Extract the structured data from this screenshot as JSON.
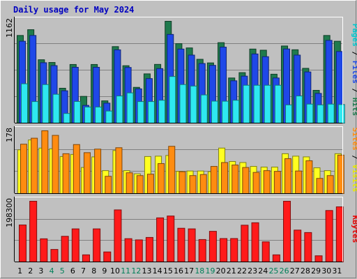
{
  "title": "Daily usage for May 2024",
  "chart_data": [
    {
      "type": "bar",
      "panel": "top",
      "ymax_label": "1162",
      "series_labels": [
        "Pages",
        "Files",
        "Hits"
      ],
      "colors": {
        "Hits": "#1f7a4d",
        "Files": "#1f48e8",
        "Pages": "#2ee8f0"
      },
      "categories": [
        "1",
        "2",
        "3",
        "4",
        "5",
        "6",
        "7",
        "8",
        "9",
        "10",
        "11",
        "12",
        "13",
        "14",
        "15",
        "16",
        "17",
        "18",
        "19",
        "20",
        "21",
        "22",
        "23",
        "24",
        "25",
        "26",
        "27",
        "28",
        "29",
        "30",
        "31"
      ],
      "series": [
        {
          "name": "Hits",
          "values": [
            1000,
            1066,
            723,
            692,
            398,
            669,
            305,
            669,
            254,
            873,
            655,
            408,
            562,
            670,
            1162,
            907,
            858,
            728,
            687,
            918,
            515,
            576,
            845,
            832,
            558,
            880,
            837,
            625,
            374,
            1000,
            934
          ]
        },
        {
          "name": "Files",
          "values": [
            934,
            1000,
            689,
            656,
            369,
            637,
            202,
            637,
            228,
            836,
            635,
            391,
            508,
            622,
            1012,
            845,
            776,
            680,
            659,
            867,
            483,
            536,
            789,
            758,
            515,
            846,
            776,
            584,
            339,
            944,
            817
          ]
        },
        {
          "name": "Pages",
          "values": [
            449,
            246,
            440,
            329,
            110,
            247,
            184,
            184,
            138,
            310,
            345,
            246,
            246,
            261,
            532,
            440,
            423,
            322,
            251,
            250,
            261,
            432,
            432,
            432,
            432,
            208,
            310,
            217,
            208,
            217,
            212
          ]
        }
      ]
    },
    {
      "type": "bar",
      "panel": "middle",
      "ymax_label": "178",
      "series_labels": [
        "Sites",
        "Visits"
      ],
      "colors": {
        "Visits": "#ffff20",
        "Sites": "#ff8c10"
      },
      "categories": [
        "1",
        "2",
        "3",
        "4",
        "5",
        "6",
        "7",
        "8",
        "9",
        "10",
        "11",
        "12",
        "13",
        "14",
        "15",
        "16",
        "17",
        "18",
        "19",
        "20",
        "21",
        "22",
        "23",
        "24",
        "25",
        "26",
        "27",
        "28",
        "29",
        "30",
        "31"
      ],
      "series": [
        {
          "name": "Visits",
          "values": [
            124,
            152,
            129,
            127,
            105,
            111,
            74,
            104,
            65,
            122,
            65,
            56,
            105,
            106,
            108,
            63,
            64,
            64,
            62,
            129,
            91,
            88,
            77,
            75,
            75,
            113,
            106,
            104,
            73,
            65,
            113
          ]
        },
        {
          "name": "Sites",
          "values": [
            140,
            157,
            178,
            165,
            113,
            139,
            116,
            126,
            49,
            130,
            59,
            51,
            55,
            85,
            134,
            62,
            51,
            54,
            77,
            88,
            81,
            74,
            60,
            65,
            63,
            99,
            64,
            93,
            43,
            51,
            109
          ]
        }
      ]
    },
    {
      "type": "bar",
      "panel": "bottom",
      "ymax_label": "198300",
      "series_labels": [
        "KBytes"
      ],
      "colors": {
        "KBytes": "#ff1a1a"
      },
      "categories": [
        "1",
        "2",
        "3",
        "4",
        "5",
        "6",
        "7",
        "8",
        "9",
        "10",
        "11",
        "12",
        "13",
        "14",
        "15",
        "16",
        "17",
        "18",
        "19",
        "20",
        "21",
        "22",
        "23",
        "24",
        "25",
        "26",
        "27",
        "28",
        "29",
        "30",
        "31"
      ],
      "series": [
        {
          "name": "KBytes",
          "values": [
            120750,
            198300,
            75550,
            40780,
            83720,
            108000,
            23150,
            108000,
            32620,
            170000,
            76000,
            72000,
            80000,
            144000,
            150000,
            110000,
            108000,
            73150,
            100000,
            76360,
            76400,
            120000,
            128000,
            65600,
            23150,
            198300,
            104000,
            96000,
            20000,
            168000,
            180000
          ]
        }
      ]
    }
  ],
  "x_axis": {
    "labels": [
      "1",
      "2",
      "3",
      "4",
      "5",
      "6",
      "7",
      "8",
      "9",
      "10",
      "11",
      "12",
      "13",
      "14",
      "15",
      "16",
      "17",
      "18",
      "19",
      "20",
      "21",
      "22",
      "23",
      "24",
      "25",
      "26",
      "27",
      "28",
      "29",
      "30",
      "31"
    ],
    "weekend_days": [
      "4",
      "5",
      "11",
      "12",
      "18",
      "19",
      "25",
      "26"
    ],
    "weekday_color": "#000000",
    "weekend_color": "#00805a"
  },
  "style": {
    "plot_bg": "#c0c0c0",
    "grid_color": "#808080",
    "sep_color": "#000000",
    "label_colors": {
      "Pages": "#00c8d0",
      "Files": "#1f48e8",
      "Hits": "#1f7a4d",
      "Sites": "#ff8c10",
      "Visits": "#e8e800",
      "KBytes": "#e80000",
      "slash": "#000000"
    }
  }
}
